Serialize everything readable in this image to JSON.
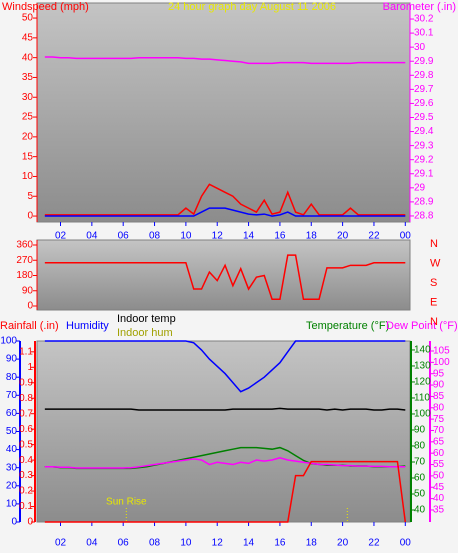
{
  "chart_data": [
    {
      "type": "line",
      "title": "24 hour graph day  August 11 2006",
      "ylabel": "Windspeed (mph)",
      "y2label": "Barometer (.in)",
      "titlecolor": "#e8e800",
      "x": [
        1,
        1.5,
        2,
        2.5,
        3,
        3.5,
        4,
        4.5,
        5,
        5.5,
        6,
        6.5,
        7,
        7.5,
        8,
        8.5,
        9,
        9.5,
        10,
        10.5,
        11,
        11.5,
        12,
        12.5,
        13,
        13.5,
        14,
        14.5,
        15,
        15.5,
        16,
        16.5,
        17,
        17.5,
        18,
        18.5,
        19,
        19.5,
        20,
        20.5,
        21,
        21.5,
        22,
        22.5,
        23,
        23.5,
        24
      ],
      "xlim": [
        0.5,
        24.3
      ],
      "xticks": [
        {
          "value": 2,
          "label": "02"
        },
        {
          "value": 4,
          "label": "04"
        },
        {
          "value": 6,
          "label": "06"
        },
        {
          "value": 8,
          "label": "08"
        },
        10,
        12,
        14,
        16,
        18,
        20,
        22,
        {
          "value": 24,
          "label": "00"
        }
      ],
      "ylim": [
        -1.5,
        53.8
      ],
      "yticks": [
        0,
        5,
        10,
        15,
        20,
        25,
        30,
        35,
        40,
        45,
        50
      ],
      "ycolor": "#ff0000",
      "y2lim": [
        28.757,
        30.314
      ],
      "y2ticks": [
        28.8,
        28.9,
        29,
        29.1,
        29.2,
        29.3,
        29.4,
        29.5,
        29.6,
        29.7,
        29.8,
        29.9,
        30,
        30.1,
        30.2
      ],
      "y2color": "#ff00ff",
      "series": [
        {
          "color": "#ff0000",
          "values": [
            0.3,
            0.3,
            0.3,
            0.3,
            0.3,
            0.3,
            0.3,
            0.3,
            0.3,
            0.3,
            0.3,
            0.3,
            0.3,
            0.3,
            0.3,
            0.3,
            0.3,
            0.3,
            2,
            0.5,
            5,
            8,
            7,
            6,
            5,
            3,
            2,
            1,
            4,
            0.5,
            1,
            6,
            1,
            0.3,
            3,
            0.3,
            0.3,
            0.3,
            0.3,
            2,
            0.3,
            0.3,
            0.3,
            0.3,
            0.3,
            0.3,
            0.3
          ]
        },
        {
          "color": "#0000ff",
          "values": [
            0,
            0,
            0,
            0,
            0,
            0,
            0,
            0,
            0,
            0,
            0,
            0,
            0,
            0,
            0,
            0,
            0,
            0,
            0,
            0,
            1,
            2,
            2,
            2,
            1.5,
            1,
            0.5,
            0.3,
            0.5,
            0,
            0.3,
            1,
            0,
            0,
            0,
            0,
            0,
            0,
            0,
            0,
            0,
            0,
            0,
            0,
            0,
            0,
            0
          ]
        },
        {
          "color": "#ff00ff",
          "axis": "y2",
          "values": [
            29.93,
            29.93,
            29.925,
            29.925,
            29.92,
            29.92,
            29.92,
            29.92,
            29.92,
            29.92,
            29.92,
            29.92,
            29.925,
            29.925,
            29.925,
            29.925,
            29.925,
            29.925,
            29.92,
            29.92,
            29.915,
            29.915,
            29.91,
            29.905,
            29.9,
            29.895,
            29.885,
            29.885,
            29.885,
            29.885,
            29.89,
            29.89,
            29.89,
            29.89,
            29.885,
            29.885,
            29.885,
            29.885,
            29.885,
            29.885,
            29.89,
            29.89,
            29.89,
            29.89,
            29.89,
            29.89,
            29.89
          ]
        }
      ]
    },
    {
      "type": "line",
      "direction_labels": [
        "N",
        "W",
        "S",
        "E",
        "N"
      ],
      "direction_color": "#ff0000",
      "x": [
        1,
        1.5,
        2,
        2.5,
        3,
        3.5,
        4,
        4.5,
        5,
        5.5,
        6,
        6.5,
        7,
        7.5,
        8,
        8.5,
        9,
        9.5,
        10,
        10.5,
        11,
        11.5,
        12,
        12.5,
        13,
        13.5,
        14,
        14.5,
        15,
        15.5,
        16,
        16.5,
        17,
        17.5,
        18,
        18.5,
        19,
        19.5,
        20,
        20.5,
        21,
        21.5,
        22,
        22.5,
        23,
        23.5,
        24
      ],
      "xlim": [
        0.5,
        24.3
      ],
      "ylim": [
        -23.6,
        389.5
      ],
      "yticks": [
        0,
        90,
        180,
        270,
        360
      ],
      "ycolor": "#ff0000",
      "series": [
        {
          "color": "#ff0000",
          "values": [
            255,
            255,
            255,
            255,
            255,
            255,
            255,
            255,
            255,
            255,
            255,
            255,
            255,
            255,
            255,
            255,
            255,
            255,
            255,
            100,
            100,
            200,
            150,
            240,
            120,
            220,
            100,
            170,
            180,
            40,
            40,
            300,
            300,
            40,
            40,
            40,
            225,
            225,
            225,
            240,
            240,
            240,
            255,
            255,
            255,
            255,
            255
          ]
        }
      ]
    },
    {
      "type": "line",
      "rainlabel": "Rainfall (.in)",
      "ylabel": "Humidity",
      "indoor_temp_label": "Indoor temp",
      "indoor_hum_label": "Indoor hum",
      "y2label": "Temperature (°F)",
      "y3label": "Dew Point (°F)",
      "indoor_hum_color": "#a0a000",
      "annotations": [
        {
          "x": 6.2,
          "label": "Sun Rise"
        },
        {
          "x": 20.3
        }
      ],
      "annotation_color": "#e8e800",
      "x": [
        1,
        1.5,
        2,
        2.5,
        3,
        3.5,
        4,
        4.5,
        5,
        5.5,
        6,
        6.5,
        7,
        7.5,
        8,
        8.5,
        9,
        9.5,
        10,
        10.5,
        11,
        11.5,
        12,
        12.5,
        13,
        13.5,
        14,
        14.5,
        15,
        15.5,
        16,
        16.5,
        17,
        17.5,
        18,
        18.5,
        19,
        19.5,
        20,
        20.5,
        21,
        21.5,
        22,
        22.5,
        23,
        23.5,
        24
      ],
      "xlim": [
        0.5,
        24.3
      ],
      "xticks": [
        {
          "value": 2,
          "label": "02"
        },
        {
          "value": 4,
          "label": "04"
        },
        {
          "value": 6,
          "label": "06"
        },
        {
          "value": 8,
          "label": "08"
        },
        10,
        12,
        14,
        16,
        18,
        20,
        22,
        {
          "value": 24,
          "label": "00"
        }
      ],
      "ylim": [
        0,
        100
      ],
      "yticks": [
        0,
        10,
        20,
        30,
        40,
        50,
        60,
        70,
        80,
        90,
        100
      ],
      "ycolor": "#0000ff",
      "rainlim": [
        0,
        1.17
      ],
      "rainticks": [
        0,
        0.1,
        0.2,
        0.3,
        0.4,
        0.5,
        0.6,
        0.7,
        0.8,
        0.9,
        1,
        1.1
      ],
      "raincolor": "#ff0000",
      "y2lim": [
        32.5,
        145.6
      ],
      "y2ticks": [
        40,
        50,
        60,
        70,
        80,
        90,
        100,
        110,
        120,
        130,
        140
      ],
      "y2color": "#008000",
      "y3lim": [
        29.7,
        109.4
      ],
      "y3ticks": [
        35,
        40,
        45,
        50,
        55,
        60,
        65,
        70,
        75,
        80,
        85,
        90,
        95,
        100,
        105
      ],
      "y3color": "#ff00ff",
      "series": [
        {
          "color": "#0000ff",
          "axis": "y",
          "values": [
            100,
            100,
            100,
            100,
            100,
            100,
            100,
            100,
            100,
            100,
            100,
            100,
            100,
            100,
            100,
            100,
            100,
            100,
            100,
            99,
            95,
            90,
            86,
            82,
            77,
            72,
            74,
            77,
            80,
            84,
            88,
            94,
            100,
            100,
            100,
            100,
            100,
            100,
            100,
            100,
            100,
            100,
            100,
            100,
            100,
            100,
            100
          ]
        },
        {
          "color": "#000000",
          "axis": "y2",
          "values": [
            103,
            103,
            103,
            103,
            103,
            103,
            103,
            103,
            103,
            103,
            103,
            103,
            102.5,
            102.5,
            102.5,
            102.5,
            102.5,
            102.5,
            102.5,
            102.5,
            102.5,
            102.5,
            102.5,
            102.5,
            103,
            103,
            103,
            103,
            103,
            103,
            103.5,
            103,
            103,
            103,
            103,
            103,
            102.5,
            103,
            102.5,
            103,
            103,
            103,
            102.5,
            102.5,
            103,
            103,
            102.5
          ]
        },
        {
          "color": "#008000",
          "axis": "y2",
          "values": [
            67,
            67,
            66.5,
            66.5,
            66,
            66,
            66,
            66,
            66,
            66,
            66,
            66,
            66.5,
            67,
            68,
            69,
            70,
            71,
            72,
            73,
            74,
            75,
            76,
            77,
            78,
            79,
            79,
            79,
            78.5,
            78,
            79,
            77,
            74,
            71,
            69,
            68.5,
            68,
            68,
            68,
            67.5,
            67.5,
            67.5,
            67,
            67,
            67,
            67,
            67.5
          ]
        },
        {
          "color": "#ff00ff",
          "axis": "y3",
          "values": [
            54,
            54,
            53.8,
            53.8,
            53.5,
            53.5,
            53.5,
            53.5,
            53.5,
            53.5,
            53.5,
            53.6,
            54,
            54.5,
            55,
            55.5,
            56,
            56.5,
            57,
            57.5,
            57,
            55,
            56,
            55.5,
            55,
            56,
            55.5,
            57,
            56.5,
            57,
            58,
            57,
            56.5,
            56,
            55.5,
            55,
            55,
            54.8,
            54.5,
            54.5,
            54.3,
            54.3,
            54.2,
            54.2,
            54,
            54,
            54
          ]
        },
        {
          "color": "#ff0000",
          "axis": "rain",
          "values": [
            0,
            0,
            0,
            0,
            0,
            0,
            0,
            0,
            0,
            0,
            0,
            0,
            0,
            0,
            0,
            0,
            0,
            0,
            0,
            0,
            0,
            0,
            0,
            0,
            0,
            0,
            0,
            0,
            0,
            0,
            0,
            0,
            0.3,
            0.3,
            0.39,
            0.39,
            0.39,
            0.39,
            0.39,
            0.39,
            0.39,
            0.39,
            0.39,
            0.39,
            0.39,
            0.39,
            0
          ]
        }
      ]
    }
  ]
}
